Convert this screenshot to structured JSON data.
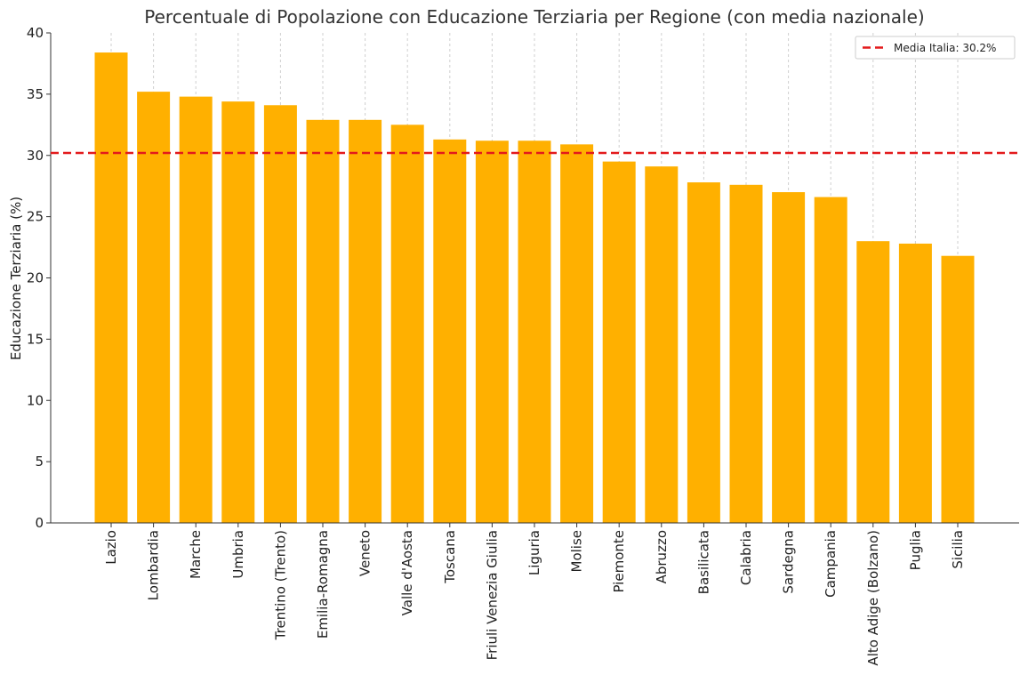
{
  "chart_data": {
    "type": "bar",
    "title": "Percentuale di Popolazione con Educazione Terziaria per Regione (con media nazionale)",
    "xlabel": "",
    "ylabel": "Educazione Terziaria (%)",
    "ylim": [
      0,
      40
    ],
    "yticks": [
      0,
      5,
      10,
      15,
      20,
      25,
      30,
      35,
      40
    ],
    "categories": [
      "Lazio",
      "Lombardia",
      "Marche",
      "Umbria",
      "Trentino (Trento)",
      "Emilia-Romagna",
      "Veneto",
      "Valle d'Aosta",
      "Toscana",
      "Friuli Venezia Giulia",
      "Liguria",
      "Molise",
      "Piemonte",
      "Abruzzo",
      "Basilicata",
      "Calabria",
      "Sardegna",
      "Campania",
      "Alto Adige (Bolzano)",
      "Puglia",
      "Sicilia"
    ],
    "values": [
      38.4,
      35.2,
      34.8,
      34.4,
      34.1,
      32.9,
      32.9,
      32.5,
      31.3,
      31.2,
      31.2,
      30.9,
      29.5,
      29.1,
      27.8,
      27.6,
      27.0,
      26.6,
      23.0,
      22.8,
      21.8
    ],
    "bar_color": "#FFB000",
    "reference_line": {
      "value": 30.2,
      "label": "Media Italia: 30.2%",
      "color": "#E31A1C"
    },
    "legend_position": "top-right",
    "grid": "vertical dashed"
  }
}
